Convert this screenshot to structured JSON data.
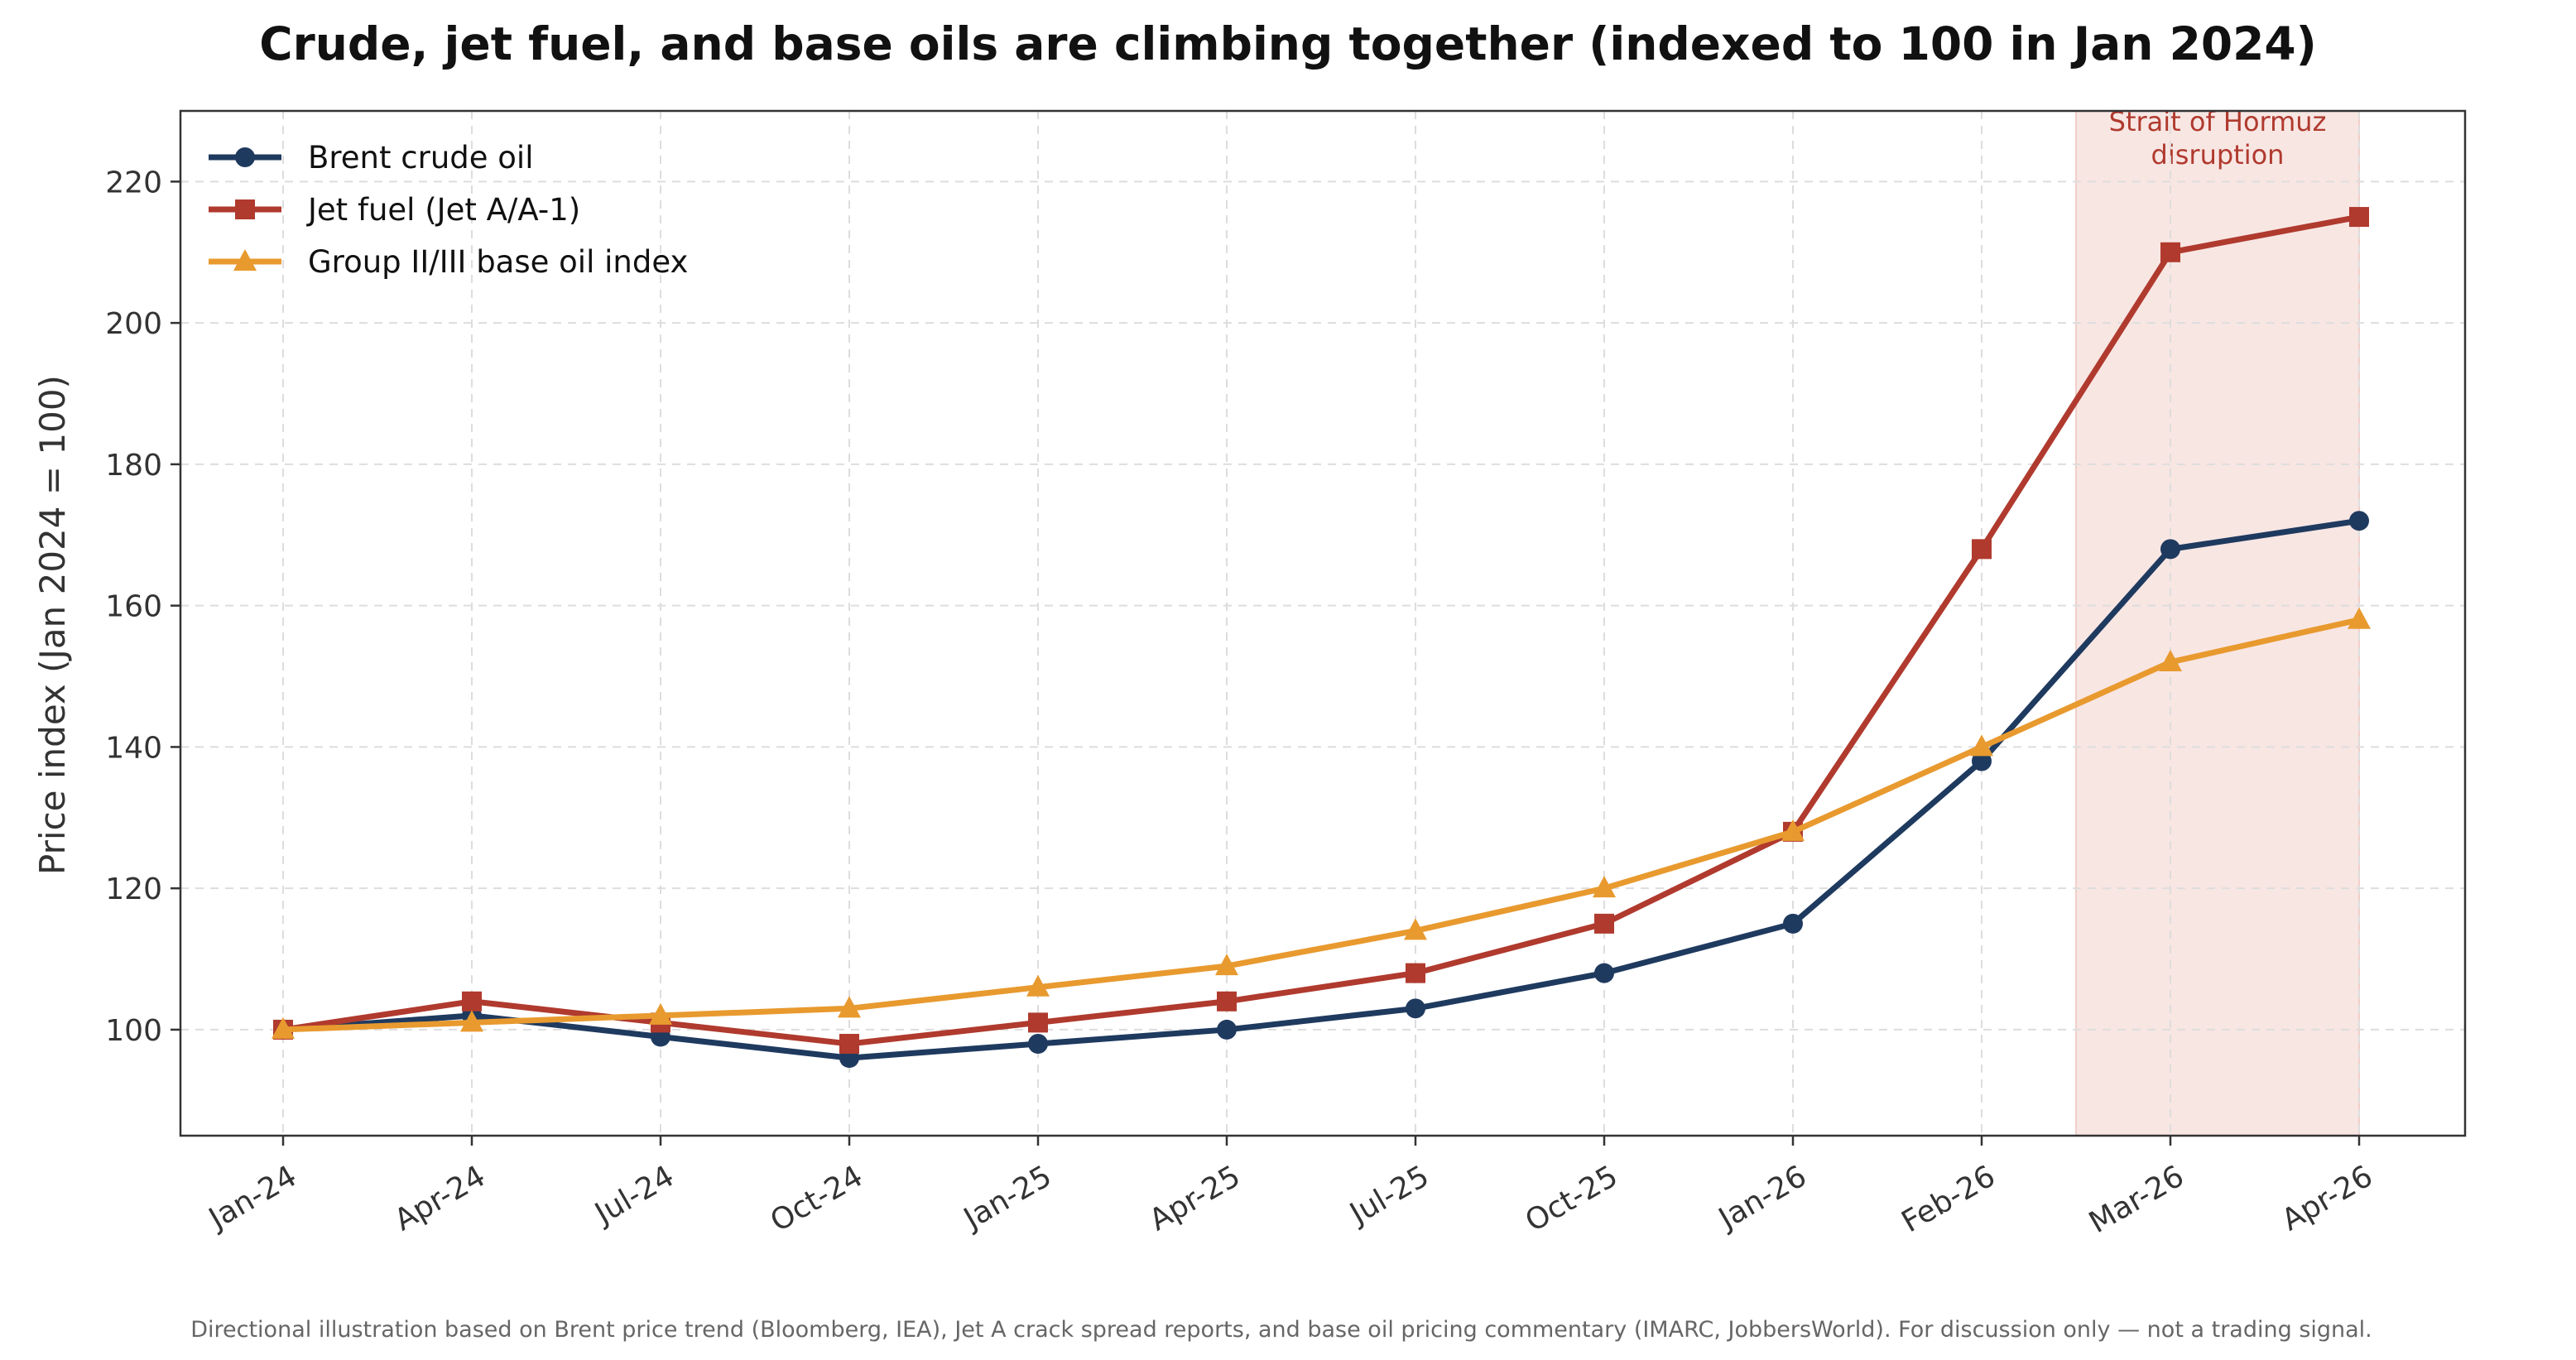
{
  "chart_data": {
    "type": "line",
    "title": "Crude, jet fuel, and base oils are climbing together (indexed to 100 in Jan 2024)",
    "ylabel": "Price index (Jan 2024 = 100)",
    "xlabel": "",
    "categories": [
      "Jan-24",
      "Apr-24",
      "Jul-24",
      "Oct-24",
      "Jan-25",
      "Apr-25",
      "Jul-25",
      "Oct-25",
      "Jan-26",
      "Feb-26",
      "Mar-26",
      "Apr-26"
    ],
    "ylim": [
      85,
      230
    ],
    "yticks": [
      100,
      120,
      140,
      160,
      180,
      200,
      220
    ],
    "grid": true,
    "legend_position": "top-left",
    "series": [
      {
        "name": "Brent crude oil",
        "color": "#1f3a5f",
        "marker": "circle",
        "values": [
          100,
          102,
          99,
          96,
          98,
          100,
          103,
          108,
          115,
          138,
          168,
          172
        ]
      },
      {
        "name": "Jet fuel (Jet A/A-1)",
        "color": "#b03a2e",
        "marker": "square",
        "values": [
          100,
          104,
          101,
          98,
          101,
          104,
          108,
          115,
          128,
          168,
          210,
          215
        ]
      },
      {
        "name": "Group II/III base oil index",
        "color": "#e89a2f",
        "marker": "triangle",
        "values": [
          100,
          101,
          102,
          103,
          106,
          109,
          114,
          120,
          128,
          140,
          152,
          158
        ]
      }
    ],
    "annotations": [
      {
        "text_lines": [
          "Strait of Hormuz",
          "disruption"
        ],
        "x_range": [
          "Feb-26",
          "Apr-26"
        ],
        "from_offset": 0.5,
        "color": "#b03a2e",
        "fill": "#f8e6e3"
      }
    ]
  },
  "footnote": "Directional illustration based on Brent price trend (Bloomberg, IEA), Jet A crack spread reports, and base oil pricing commentary (IMARC, JobbersWorld). For discussion only — not a trading signal."
}
